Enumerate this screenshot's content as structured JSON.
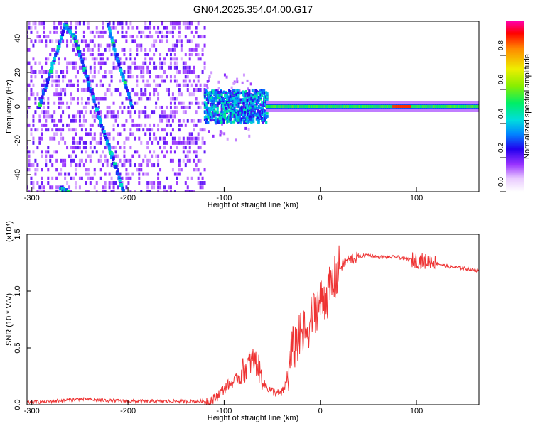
{
  "title": "GN04.2025.354.04.00.G17",
  "chart_data": [
    {
      "type": "heatmap",
      "xlabel": "Height of straight line (km)",
      "ylabel": "Frequency (Hz)",
      "xlim": [
        -305,
        165
      ],
      "ylim": [
        -50,
        50
      ],
      "xticks": [
        -300,
        -200,
        -100,
        0,
        100
      ],
      "yticks": [
        -40,
        -20,
        0,
        20,
        40
      ],
      "colorbar": {
        "label": "Normalized spectral amplitude",
        "range": [
          0,
          1
        ],
        "ticks": [
          "0.0",
          "0.2",
          "0.4",
          "0.6",
          "0.8"
        ]
      },
      "features": [
        {
          "kind": "line",
          "points": [
            [
              -292,
              0
            ],
            [
              -275,
              30
            ],
            [
              -265,
              48
            ],
            [
              -255,
              40
            ],
            [
              -240,
              12
            ],
            [
              -225,
              -15
            ],
            [
              -213,
              -35
            ],
            [
              -205,
              -50
            ]
          ]
        },
        {
          "kind": "line",
          "points": [
            [
              -222,
              50
            ],
            [
              -212,
              30
            ],
            [
              -195,
              0
            ]
          ]
        },
        {
          "kind": "line",
          "points": [
            [
              -270,
              -48
            ],
            [
              -262,
              -50
            ]
          ]
        },
        {
          "kind": "band",
          "x": [
            -120,
            -55
          ],
          "center": 0,
          "spread": 12
        },
        {
          "kind": "band",
          "x": [
            -55,
            165
          ],
          "center": 0,
          "spread": 3
        }
      ]
    },
    {
      "type": "line",
      "xlabel": "Height of straight line (km)",
      "ylabel": "SNR (10 * V/V)",
      "multiplier": "(x10⁴)",
      "xlim": [
        -305,
        165
      ],
      "ylim": [
        0,
        1.5
      ],
      "xticks": [
        -300,
        -200,
        -100,
        0,
        100
      ],
      "yticks": [
        "0.0",
        "0.5",
        "1.0",
        "1.5"
      ],
      "color": "#ee3333",
      "series": [
        {
          "x": [
            -305,
            -280,
            -250,
            -230,
            -200,
            -150,
            -120,
            -110,
            -105,
            -100,
            -95,
            -90,
            -85,
            -80,
            -75,
            -70,
            -65,
            -60,
            -55,
            -50,
            -45,
            -40,
            -35,
            -30,
            -25,
            -20,
            -15,
            -10,
            -5,
            0,
            5,
            10,
            15,
            20,
            25,
            30,
            40,
            50,
            60,
            70,
            80,
            90,
            100,
            110,
            115,
            120,
            130,
            140,
            150,
            165
          ],
          "y": [
            0.02,
            0.03,
            0.05,
            0.04,
            0.03,
            0.03,
            0.03,
            0.05,
            0.1,
            0.14,
            0.18,
            0.2,
            0.25,
            0.3,
            0.35,
            0.4,
            0.35,
            0.2,
            0.15,
            0.12,
            0.1,
            0.1,
            0.2,
            0.45,
            0.55,
            0.6,
            0.65,
            0.75,
            0.85,
            0.9,
            0.95,
            1.0,
            1.1,
            1.2,
            1.25,
            1.28,
            1.3,
            1.32,
            1.3,
            1.3,
            1.3,
            1.28,
            1.27,
            1.26,
            1.27,
            1.25,
            1.22,
            1.21,
            1.2,
            1.18
          ]
        }
      ]
    }
  ]
}
